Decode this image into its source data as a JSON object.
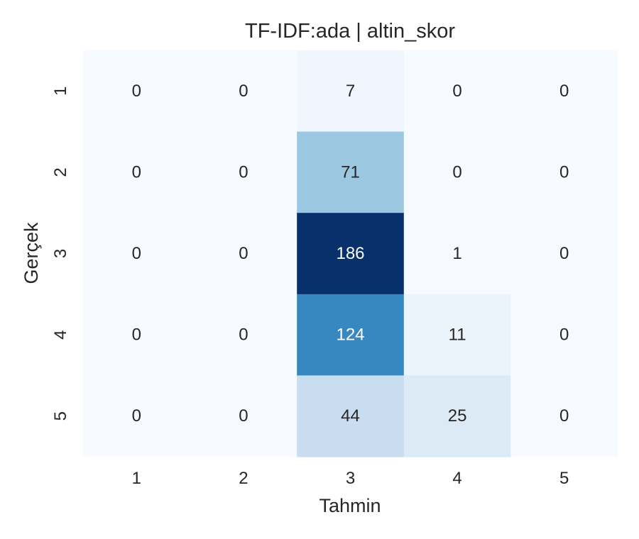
{
  "chart_data": {
    "type": "heatmap",
    "title": "TF-IDF:ada | altin_skor",
    "xlabel": "Tahmin",
    "ylabel": "Gerçek",
    "x_categories": [
      "1",
      "2",
      "3",
      "4",
      "5"
    ],
    "y_categories": [
      "1",
      "2",
      "3",
      "4",
      "5"
    ],
    "values": [
      [
        0,
        0,
        7,
        0,
        0
      ],
      [
        0,
        0,
        71,
        0,
        0
      ],
      [
        0,
        0,
        186,
        1,
        0
      ],
      [
        0,
        0,
        124,
        11,
        0
      ],
      [
        0,
        0,
        44,
        25,
        0
      ]
    ],
    "colormap": "Blues",
    "value_range": [
      0,
      186
    ],
    "colorbar": false,
    "grid": false
  }
}
